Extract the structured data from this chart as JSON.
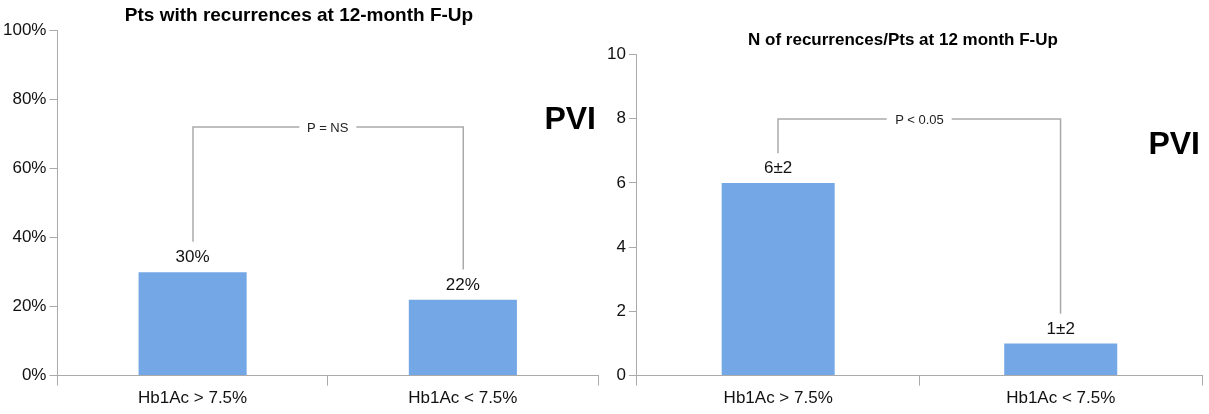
{
  "chart_data": [
    {
      "type": "bar",
      "title": "Pts with recurrences at 12-month F-Up",
      "categories": [
        "Hb1Ac > 7.5%",
        "Hb1Ac < 7.5%"
      ],
      "values": [
        30,
        22
      ],
      "value_labels": [
        "30%",
        "22%"
      ],
      "color": "#74a7e6",
      "ylim": [
        0,
        100
      ],
      "yticks": [
        {
          "value": 0,
          "label": "0%"
        },
        {
          "value": 20,
          "label": "20%"
        },
        {
          "value": 40,
          "label": "40%"
        },
        {
          "value": 60,
          "label": "60%"
        },
        {
          "value": 80,
          "label": "80%"
        },
        {
          "value": 100,
          "label": "100%"
        }
      ],
      "annotations": [
        "P = NS",
        "PVI"
      ]
    },
    {
      "type": "bar",
      "title": "N of recurrences/Pts at 12 month F-Up",
      "categories": [
        "Hb1Ac > 7.5%",
        "Hb1Ac < 7.5%"
      ],
      "values": [
        6,
        1
      ],
      "value_labels": [
        "6±2",
        "1±2"
      ],
      "color": "#74a7e6",
      "ylim": [
        0,
        10
      ],
      "yticks": [
        0,
        2,
        4,
        6,
        8,
        10
      ],
      "annotations": [
        "P < 0.05",
        "PVI"
      ]
    }
  ]
}
